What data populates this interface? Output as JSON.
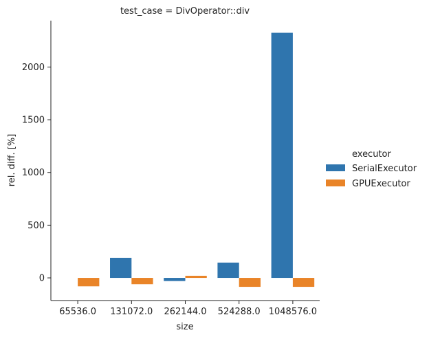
{
  "chart_data": {
    "type": "bar",
    "title": "test_case = DivOperator::div",
    "xlabel": "size",
    "ylabel": "rel. diff. [%]",
    "categories": [
      "65536.0",
      "131072.0",
      "262144.0",
      "524288.0",
      "1048576.0"
    ],
    "series": [
      {
        "name": "SerialExecutor",
        "color": "#2f75ae",
        "values": [
          0,
          190,
          -30,
          145,
          2325
        ]
      },
      {
        "name": "GPUExecutor",
        "color": "#e98428",
        "values": [
          -80,
          -60,
          20,
          -85,
          -85
        ]
      }
    ],
    "ylim": [
      -215,
      2440
    ],
    "yticks": [
      0,
      500,
      1000,
      1500,
      2000
    ],
    "grid": false,
    "legend": {
      "title": "executor",
      "placement": "right"
    }
  }
}
